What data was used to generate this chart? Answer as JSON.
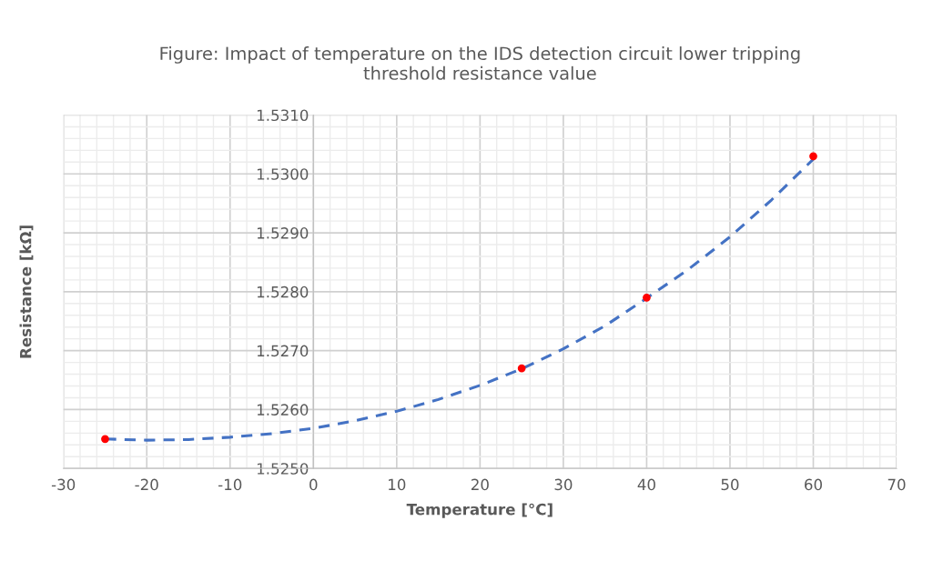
{
  "chart_data": {
    "type": "scatter",
    "title": "Figure: Impact of temperature on the IDS detection circuit lower tripping\nthreshold resistance value",
    "xlabel": "Temperature [°C]",
    "ylabel": "Resistance [kΩ]",
    "series": [
      {
        "color": "#ff0000",
        "x": [
          -25,
          25,
          40,
          60
        ],
        "values": [
          1.5255,
          1.5267,
          1.5279,
          1.5303
        ],
        "marker": "circle"
      },
      {
        "type": "line",
        "color": "#4472c4",
        "line_style": "dashed",
        "marker": "none",
        "x": [
          -25,
          -20,
          -15,
          -10,
          -5,
          0,
          5,
          10,
          15,
          20,
          25,
          30,
          35,
          40,
          45,
          50,
          55,
          60
        ],
        "values": [
          1.5255,
          1.52548,
          1.52549,
          1.52553,
          1.52559,
          1.52568,
          1.52581,
          1.52597,
          1.52617,
          1.52641,
          1.52669,
          1.52703,
          1.52742,
          1.52789,
          1.52838,
          1.52893,
          1.52956,
          1.53025
        ]
      }
    ],
    "xlim": [
      -30,
      70
    ],
    "xticks": [
      -30,
      -20,
      -10,
      0,
      10,
      20,
      30,
      40,
      50,
      60,
      70
    ],
    "ylim": [
      1.525,
      1.531
    ],
    "yticks": [
      {
        "value": 1.525,
        "label": "1.5250"
      },
      {
        "value": 1.526,
        "label": "1.5260"
      },
      {
        "value": 1.527,
        "label": "1.5270"
      },
      {
        "value": 1.528,
        "label": "1.5280"
      },
      {
        "value": 1.529,
        "label": "1.5290"
      },
      {
        "value": 1.53,
        "label": "1.5300"
      },
      {
        "value": 1.531,
        "label": "1.5310"
      }
    ],
    "grid": true
  }
}
